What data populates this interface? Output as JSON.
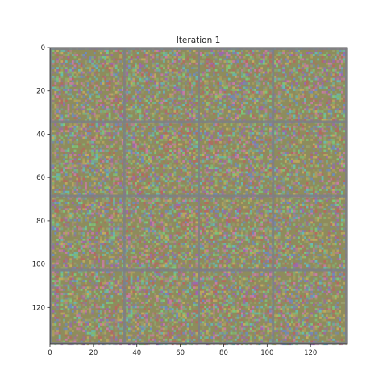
{
  "figure": {
    "title": "Iteration 1",
    "image": {
      "description_type": "grid of noise tiles",
      "grid_rows": 4,
      "grid_cols": 4,
      "base_color": "#8e8c5c",
      "separator_color": "#7c7f86",
      "noise_palette": [
        "#d07ab0",
        "#7ad080",
        "#6a8ad0",
        "#c8b060",
        "#a060c0",
        "#60c0c0",
        "#c06060",
        "#9aa070"
      ]
    },
    "x_axis": {
      "ticks": [
        "0",
        "20",
        "40",
        "60",
        "80",
        "100",
        "120"
      ],
      "tick_values": [
        0,
        20,
        40,
        60,
        80,
        100,
        120
      ],
      "range": [
        0,
        137
      ]
    },
    "y_axis": {
      "ticks": [
        "0",
        "20",
        "40",
        "60",
        "80",
        "100",
        "120"
      ],
      "tick_values": [
        0,
        20,
        40,
        60,
        80,
        100,
        120
      ],
      "range": [
        0,
        137
      ]
    }
  }
}
